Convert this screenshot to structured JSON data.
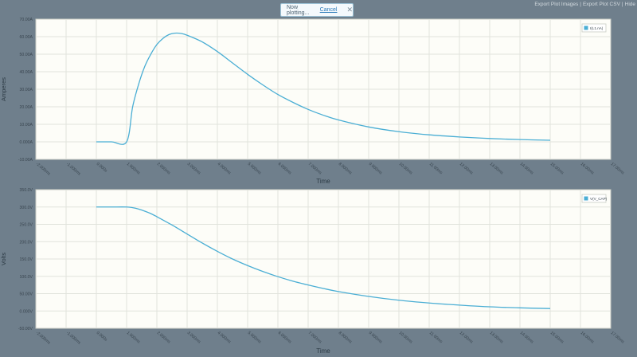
{
  "toast": {
    "text": "Now plotting...",
    "cancel_label": "Cancel",
    "close_glyph": "✕"
  },
  "export": {
    "images_label": "Export Plot Images",
    "csv_label": "Export Plot CSV",
    "hide_label": "Hide",
    "separator": "|"
  },
  "chart_data": [
    {
      "type": "line",
      "xlabel": "Time",
      "ylabel": "Amperes",
      "xlim": [
        -2,
        17
      ],
      "ylim": [
        -10,
        70
      ],
      "grid": true,
      "legend_position": "top-right",
      "x_tick_labels": [
        "-2.000ms",
        "-1.000ms",
        "0.000s",
        "1.000ms",
        "2.000ms",
        "3.000ms",
        "4.000ms",
        "5.000ms",
        "6.000ms",
        "7.000ms",
        "8.000ms",
        "9.000ms",
        "10.00ms",
        "11.00ms",
        "12.00ms",
        "13.00ms",
        "14.00ms",
        "15.00ms",
        "16.00ms",
        "17.00ms"
      ],
      "y_ticks": [
        -10,
        0,
        10,
        20,
        30,
        40,
        50,
        60,
        70
      ],
      "y_tick_labels": [
        "-10.00A",
        "0.000A",
        "10.00A",
        "20.00A",
        "30.00A",
        "40.00A",
        "50.00A",
        "60.00A",
        "70.00A"
      ],
      "series": [
        {
          "name": "I(L1.nA)",
          "color": "#4aaed4",
          "x": [
            0,
            0.5,
            1,
            1.2,
            1.4,
            1.6,
            1.8,
            2,
            2.2,
            2.4,
            2.6,
            2.8,
            3,
            3.5,
            4,
            4.5,
            5,
            5.5,
            6,
            6.5,
            7,
            7.5,
            8,
            9,
            10,
            11,
            12,
            13,
            14,
            15
          ],
          "y": [
            0,
            0,
            0,
            20,
            33,
            43,
            50,
            55.5,
            59,
            61.2,
            62,
            61.8,
            60.8,
            57,
            51.5,
            45,
            38.5,
            32.5,
            27,
            22.5,
            18.5,
            15.2,
            12.5,
            8.5,
            5.8,
            4,
            2.8,
            1.9,
            1.3,
            0.9
          ]
        }
      ]
    },
    {
      "type": "line",
      "xlabel": "Time",
      "ylabel": "Volts",
      "xlim": [
        -2,
        17
      ],
      "ylim": [
        -50,
        350
      ],
      "grid": true,
      "legend_position": "top-right",
      "x_tick_labels": [
        "-2.000ms",
        "-1.000ms",
        "0.000s",
        "1.000ms",
        "2.000ms",
        "3.000ms",
        "4.000ms",
        "5.000ms",
        "6.000ms",
        "7.000ms",
        "8.000ms",
        "9.000ms",
        "10.00ms",
        "11.00ms",
        "12.00ms",
        "13.00ms",
        "14.00ms",
        "15.00ms",
        "16.00ms",
        "17.00ms"
      ],
      "y_ticks": [
        -50,
        0,
        50,
        100,
        150,
        200,
        250,
        300,
        350
      ],
      "y_tick_labels": [
        "-50.00V",
        "0.000V",
        "50.00V",
        "100.0V",
        "150.0V",
        "200.0V",
        "250.0V",
        "300.0V",
        "350.0V"
      ],
      "series": [
        {
          "name": "V(V_CAP)",
          "color": "#4aaed4",
          "x": [
            0,
            0.5,
            1,
            1.2,
            1.4,
            1.6,
            1.8,
            2,
            2.5,
            3,
            3.5,
            4,
            4.5,
            5,
            5.5,
            6,
            6.5,
            7,
            7.5,
            8,
            9,
            10,
            11,
            12,
            13,
            14,
            15
          ],
          "y": [
            300,
            300,
            300,
            298,
            294,
            288,
            281,
            272,
            248,
            222,
            196,
            172,
            150,
            131,
            114,
            99,
            86,
            75,
            65,
            56,
            42,
            31,
            23,
            17,
            12,
            9,
            7
          ]
        }
      ]
    }
  ]
}
